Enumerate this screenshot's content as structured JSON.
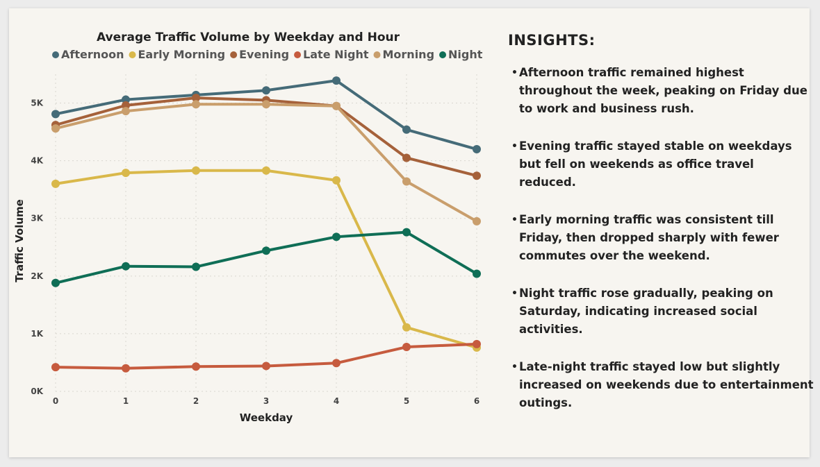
{
  "chart_data": {
    "type": "line",
    "title": "Average Traffic Volume by Weekday and Hour",
    "xlabel": "Weekday",
    "ylabel": "Traffic Volume",
    "x": [
      0,
      1,
      2,
      3,
      4,
      5,
      6
    ],
    "ylim": [
      0,
      5500
    ],
    "yticks": [
      0,
      1000,
      2000,
      3000,
      4000,
      5000
    ],
    "ytick_labels": [
      "0K",
      "1K",
      "2K",
      "3K",
      "4K",
      "5K"
    ],
    "grid": true,
    "legend_position": "top",
    "series": [
      {
        "name": "Afternoon",
        "color": "#456b78",
        "values": [
          4810,
          5060,
          5140,
          5220,
          5390,
          4540,
          4200
        ]
      },
      {
        "name": "Early Morning",
        "color": "#d9b84a",
        "values": [
          3600,
          3790,
          3830,
          3830,
          3660,
          1110,
          760
        ]
      },
      {
        "name": "Evening",
        "color": "#a5613a",
        "values": [
          4620,
          4960,
          5090,
          5050,
          4950,
          4050,
          3740
        ]
      },
      {
        "name": "Late Night",
        "color": "#c65b3e",
        "values": [
          420,
          400,
          430,
          440,
          490,
          770,
          820
        ]
      },
      {
        "name": "Morning",
        "color": "#c99e6c",
        "values": [
          4560,
          4860,
          4980,
          4980,
          4950,
          3640,
          2950
        ]
      },
      {
        "name": "Night",
        "color": "#0f6e56",
        "values": [
          1880,
          2170,
          2160,
          2440,
          2680,
          2760,
          2040
        ]
      }
    ]
  },
  "insights": {
    "title": "INSIGHTS:",
    "bullet": "•",
    "items": [
      "Afternoon traffic remained highest throughout the week, peaking on Friday due to work and business rush.",
      "Evening traffic stayed stable on weekdays but fell on weekends as office travel reduced.",
      "Early morning traffic was consistent till Friday, then dropped sharply with fewer commutes over the weekend.",
      "Night traffic rose gradually, peaking on Saturday, indicating increased social activities.",
      "Late-night traffic stayed low but slightly increased on weekends due to entertainment outings."
    ]
  }
}
